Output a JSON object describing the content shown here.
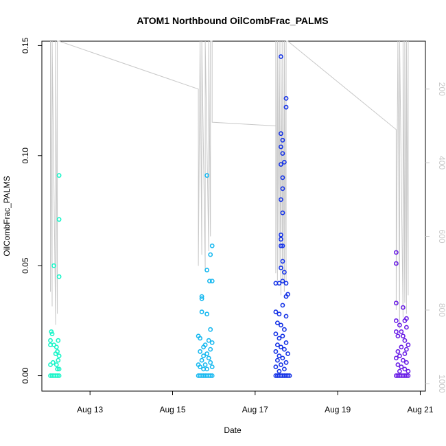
{
  "chart_data": {
    "type": "scatter",
    "title": "ATOM1 Northbound OilCombFrac_PALMS",
    "xlabel": "Date",
    "ylabel": "OilCombFrac_PALMS",
    "xlim": [
      "2016-08-11T20:00",
      "2016-08-21T03:00"
    ],
    "ylim": [
      -0.007,
      0.152
    ],
    "x_ticks": [
      {
        "date": "2016-08-13",
        "label": "Aug 13"
      },
      {
        "date": "2016-08-15",
        "label": "Aug 15"
      },
      {
        "date": "2016-08-17",
        "label": "Aug 17"
      },
      {
        "date": "2016-08-19",
        "label": "Aug 19"
      },
      {
        "date": "2016-08-21",
        "label": "Aug 21"
      }
    ],
    "y_ticks": [
      0.0,
      0.05,
      0.1,
      0.15
    ],
    "y_tick_labels": [
      "0.00",
      "0.05",
      "0.10",
      "0.15"
    ],
    "secondary_axis": {
      "label": "",
      "reversed": true,
      "ylim": [
        1020,
        70
      ],
      "ticks": [
        200,
        400,
        600,
        800,
        1000
      ],
      "tick_labels": [
        "200",
        "400",
        "600",
        "800",
        "1000"
      ],
      "color": "#c8c8c8"
    },
    "grid": false,
    "series": [
      {
        "color": "#19f5c8",
        "points": [
          [
            "2016-08-12T03:00",
            0.05
          ],
          [
            "2016-08-12T06:00",
            0.091
          ],
          [
            "2016-08-12T06:00",
            0.071
          ],
          [
            "2016-08-12T06:00",
            0.045
          ],
          [
            "2016-08-12T01:30",
            0.02
          ],
          [
            "2016-08-12T02:00",
            0.019
          ],
          [
            "2016-08-12T01:00",
            0.016
          ],
          [
            "2016-08-12T05:30",
            0.016
          ],
          [
            "2016-08-12T01:00",
            0.014
          ],
          [
            "2016-08-12T03:00",
            0.014
          ],
          [
            "2016-08-12T04:30",
            0.013
          ],
          [
            "2016-08-12T05:00",
            0.011
          ],
          [
            "2016-08-12T04:00",
            0.01
          ],
          [
            "2016-08-12T06:00",
            0.009
          ],
          [
            "2016-08-12T05:30",
            0.007
          ],
          [
            "2016-08-12T02:30",
            0.006
          ],
          [
            "2016-08-12T04:30",
            0.005
          ],
          [
            "2016-08-12T01:00",
            0.005
          ],
          [
            "2016-08-12T06:00",
            0.003
          ],
          [
            "2016-08-12T05:00",
            0.003
          ],
          [
            "2016-08-12T01:00",
            0.0
          ],
          [
            "2016-08-12T02:00",
            0.0
          ],
          [
            "2016-08-12T03:00",
            0.0
          ],
          [
            "2016-08-12T04:00",
            0.0
          ],
          [
            "2016-08-12T05:00",
            0.0
          ],
          [
            "2016-08-12T06:00",
            0.0
          ]
        ]
      },
      {
        "color": "#19b9f0",
        "points": [
          [
            "2016-08-15T20:00",
            0.091
          ],
          [
            "2016-08-15T23:00",
            0.059
          ],
          [
            "2016-08-15T22:00",
            0.055
          ],
          [
            "2016-08-15T20:00",
            0.048
          ],
          [
            "2016-08-15T23:00",
            0.043
          ],
          [
            "2016-08-15T21:30",
            0.043
          ],
          [
            "2016-08-15T17:00",
            0.036
          ],
          [
            "2016-08-15T17:00",
            0.035
          ],
          [
            "2016-08-15T17:00",
            0.029
          ],
          [
            "2016-08-15T20:00",
            0.028
          ],
          [
            "2016-08-15T22:00",
            0.021
          ],
          [
            "2016-08-15T15:00",
            0.018
          ],
          [
            "2016-08-15T16:00",
            0.017
          ],
          [
            "2016-08-15T21:00",
            0.016
          ],
          [
            "2016-08-15T23:00",
            0.015
          ],
          [
            "2016-08-15T19:00",
            0.014
          ],
          [
            "2016-08-15T18:00",
            0.013
          ],
          [
            "2016-08-15T22:00",
            0.012
          ],
          [
            "2016-08-15T16:00",
            0.011
          ],
          [
            "2016-08-15T20:00",
            0.01
          ],
          [
            "2016-08-15T18:00",
            0.009
          ],
          [
            "2016-08-15T21:00",
            0.008
          ],
          [
            "2016-08-15T17:00",
            0.007
          ],
          [
            "2016-08-15T22:00",
            0.006
          ],
          [
            "2016-08-15T15:00",
            0.005
          ],
          [
            "2016-08-15T19:00",
            0.005
          ],
          [
            "2016-08-15T16:00",
            0.004
          ],
          [
            "2016-08-15T23:00",
            0.004
          ],
          [
            "2016-08-15T18:00",
            0.003
          ],
          [
            "2016-08-15T20:00",
            0.003
          ],
          [
            "2016-08-15T15:00",
            0.0
          ],
          [
            "2016-08-15T16:00",
            0.0
          ],
          [
            "2016-08-15T17:00",
            0.0
          ],
          [
            "2016-08-15T18:00",
            0.0
          ],
          [
            "2016-08-15T19:00",
            0.0
          ],
          [
            "2016-08-15T20:00",
            0.0
          ],
          [
            "2016-08-15T21:00",
            0.0
          ],
          [
            "2016-08-15T22:00",
            0.0
          ],
          [
            "2016-08-15T23:00",
            0.0
          ]
        ]
      },
      {
        "color": "#1432e6",
        "points": [
          [
            "2016-08-17T15:00",
            0.145
          ],
          [
            "2016-08-17T18:00",
            0.126
          ],
          [
            "2016-08-17T18:00",
            0.122
          ],
          [
            "2016-08-17T15:00",
            0.11
          ],
          [
            "2016-08-17T16:00",
            0.107
          ],
          [
            "2016-08-17T15:00",
            0.104
          ],
          [
            "2016-08-17T16:00",
            0.101
          ],
          [
            "2016-08-17T17:00",
            0.097
          ],
          [
            "2016-08-17T15:00",
            0.096
          ],
          [
            "2016-08-17T16:00",
            0.09
          ],
          [
            "2016-08-17T16:00",
            0.085
          ],
          [
            "2016-08-17T15:00",
            0.08
          ],
          [
            "2016-08-17T16:00",
            0.074
          ],
          [
            "2016-08-17T15:00",
            0.064
          ],
          [
            "2016-08-17T15:00",
            0.062
          ],
          [
            "2016-08-17T16:00",
            0.059
          ],
          [
            "2016-08-17T15:00",
            0.059
          ],
          [
            "2016-08-17T16:00",
            0.052
          ],
          [
            "2016-08-17T15:00",
            0.049
          ],
          [
            "2016-08-17T17:00",
            0.047
          ],
          [
            "2016-08-17T12:00",
            0.042
          ],
          [
            "2016-08-17T14:00",
            0.042
          ],
          [
            "2016-08-17T16:00",
            0.043
          ],
          [
            "2016-08-17T18:00",
            0.042
          ],
          [
            "2016-08-17T19:00",
            0.037
          ],
          [
            "2016-08-17T18:00",
            0.036
          ],
          [
            "2016-08-17T16:00",
            0.032
          ],
          [
            "2016-08-17T12:00",
            0.029
          ],
          [
            "2016-08-17T14:00",
            0.028
          ],
          [
            "2016-08-17T18:00",
            0.027
          ],
          [
            "2016-08-17T13:00",
            0.024
          ],
          [
            "2016-08-17T15:00",
            0.023
          ],
          [
            "2016-08-17T17:00",
            0.021
          ],
          [
            "2016-08-17T12:00",
            0.019
          ],
          [
            "2016-08-17T16:00",
            0.018
          ],
          [
            "2016-08-17T14:00",
            0.017
          ],
          [
            "2016-08-17T18:00",
            0.015
          ],
          [
            "2016-08-17T13:00",
            0.014
          ],
          [
            "2016-08-17T15:00",
            0.013
          ],
          [
            "2016-08-17T17:00",
            0.012
          ],
          [
            "2016-08-17T12:00",
            0.011
          ],
          [
            "2016-08-17T19:00",
            0.01
          ],
          [
            "2016-08-17T14:00",
            0.009
          ],
          [
            "2016-08-17T16:00",
            0.008
          ],
          [
            "2016-08-17T13:00",
            0.007
          ],
          [
            "2016-08-17T18:00",
            0.006
          ],
          [
            "2016-08-17T15:00",
            0.005
          ],
          [
            "2016-08-17T12:00",
            0.004
          ],
          [
            "2016-08-17T17:00",
            0.003
          ],
          [
            "2016-08-17T14:00",
            0.002
          ],
          [
            "2016-08-17T12:00",
            0.0
          ],
          [
            "2016-08-17T13:00",
            0.0
          ],
          [
            "2016-08-17T14:00",
            0.0
          ],
          [
            "2016-08-17T15:00",
            0.0
          ],
          [
            "2016-08-17T16:00",
            0.0
          ],
          [
            "2016-08-17T17:00",
            0.0
          ],
          [
            "2016-08-17T18:00",
            0.0
          ],
          [
            "2016-08-17T19:00",
            0.0
          ],
          [
            "2016-08-17T20:00",
            0.0
          ]
        ]
      },
      {
        "color": "#6a1ee6",
        "points": [
          [
            "2016-08-20T10:00",
            0.056
          ],
          [
            "2016-08-20T10:00",
            0.051
          ],
          [
            "2016-08-20T10:00",
            0.033
          ],
          [
            "2016-08-20T14:00",
            0.031
          ],
          [
            "2016-08-20T10:00",
            0.025
          ],
          [
            "2016-08-20T15:00",
            0.025
          ],
          [
            "2016-08-20T16:00",
            0.026
          ],
          [
            "2016-08-20T12:00",
            0.023
          ],
          [
            "2016-08-20T16:00",
            0.022
          ],
          [
            "2016-08-20T10:00",
            0.02
          ],
          [
            "2016-08-20T13:00",
            0.02
          ],
          [
            "2016-08-20T11:00",
            0.018
          ],
          [
            "2016-08-20T14:00",
            0.018
          ],
          [
            "2016-08-20T15:00",
            0.016
          ],
          [
            "2016-08-20T17:00",
            0.014
          ],
          [
            "2016-08-20T13:00",
            0.013
          ],
          [
            "2016-08-20T16:00",
            0.012
          ],
          [
            "2016-08-20T11:00",
            0.011
          ],
          [
            "2016-08-20T15:00",
            0.01
          ],
          [
            "2016-08-20T12:00",
            0.009
          ],
          [
            "2016-08-20T10:00",
            0.008
          ],
          [
            "2016-08-20T14:00",
            0.007
          ],
          [
            "2016-08-20T16:00",
            0.006
          ],
          [
            "2016-08-20T11:00",
            0.005
          ],
          [
            "2016-08-20T13:00",
            0.004
          ],
          [
            "2016-08-20T15:00",
            0.003
          ],
          [
            "2016-08-20T12:00",
            0.002
          ],
          [
            "2016-08-20T17:00",
            0.002
          ],
          [
            "2016-08-20T10:00",
            0.0
          ],
          [
            "2016-08-20T11:00",
            0.0
          ],
          [
            "2016-08-20T12:00",
            0.0
          ],
          [
            "2016-08-20T13:00",
            0.0
          ],
          [
            "2016-08-20T14:00",
            0.0
          ],
          [
            "2016-08-20T15:00",
            0.0
          ],
          [
            "2016-08-20T16:00",
            0.0
          ],
          [
            "2016-08-20T17:00",
            0.0
          ]
        ]
      }
    ],
    "secondary_series": {
      "color": "#c8c8c8",
      "points": [
        [
          "2016-08-12T01:00",
          750
        ],
        [
          "2016-08-12T01:00",
          70
        ],
        [
          "2016-08-12T02:00",
          790
        ],
        [
          "2016-08-12T02:00",
          70
        ],
        [
          "2016-08-12T04:00",
          840
        ],
        [
          "2016-08-12T04:00",
          70
        ],
        [
          "2016-08-12T05:00",
          810
        ],
        [
          "2016-08-12T05:00",
          70
        ],
        [
          "2016-08-12T06:00",
          70
        ],
        [
          "2016-08-15T15:00",
          200
        ],
        [
          "2016-08-15T15:00",
          680
        ],
        [
          "2016-08-15T16:00",
          70
        ],
        [
          "2016-08-15T17:00",
          650
        ],
        [
          "2016-08-15T17:00",
          70
        ],
        [
          "2016-08-15T19:00",
          690
        ],
        [
          "2016-08-15T19:00",
          70
        ],
        [
          "2016-08-15T21:00",
          640
        ],
        [
          "2016-08-15T21:00",
          70
        ],
        [
          "2016-08-15T22:00",
          600
        ],
        [
          "2016-08-15T22:00",
          70
        ],
        [
          "2016-08-15T23:00",
          70
        ],
        [
          "2016-08-15T23:00",
          290
        ],
        [
          "2016-08-17T12:00",
          300
        ],
        [
          "2016-08-17T12:00",
          700
        ],
        [
          "2016-08-17T12:00",
          70
        ],
        [
          "2016-08-17T13:00",
          720
        ],
        [
          "2016-08-17T13:00",
          70
        ],
        [
          "2016-08-17T14:00",
          690
        ],
        [
          "2016-08-17T14:00",
          70
        ],
        [
          "2016-08-17T15:00",
          760
        ],
        [
          "2016-08-17T15:00",
          70
        ],
        [
          "2016-08-17T16:00",
          730
        ],
        [
          "2016-08-17T16:00",
          70
        ],
        [
          "2016-08-17T17:00",
          750
        ],
        [
          "2016-08-17T17:00",
          70
        ],
        [
          "2016-08-17T18:00",
          720
        ],
        [
          "2016-08-17T18:00",
          70
        ],
        [
          "2016-08-17T19:00",
          70
        ],
        [
          "2016-08-20T10:00",
          310
        ],
        [
          "2016-08-20T10:00",
          800
        ],
        [
          "2016-08-20T11:00",
          70
        ],
        [
          "2016-08-20T12:00",
          850
        ],
        [
          "2016-08-20T12:00",
          70
        ],
        [
          "2016-08-20T14:00",
          820
        ],
        [
          "2016-08-20T14:00",
          70
        ],
        [
          "2016-08-20T15:00",
          780
        ],
        [
          "2016-08-20T15:00",
          70
        ],
        [
          "2016-08-20T16:00",
          810
        ],
        [
          "2016-08-20T16:00",
          70
        ],
        [
          "2016-08-20T17:00",
          760
        ],
        [
          "2016-08-20T17:00",
          70
        ]
      ]
    }
  }
}
